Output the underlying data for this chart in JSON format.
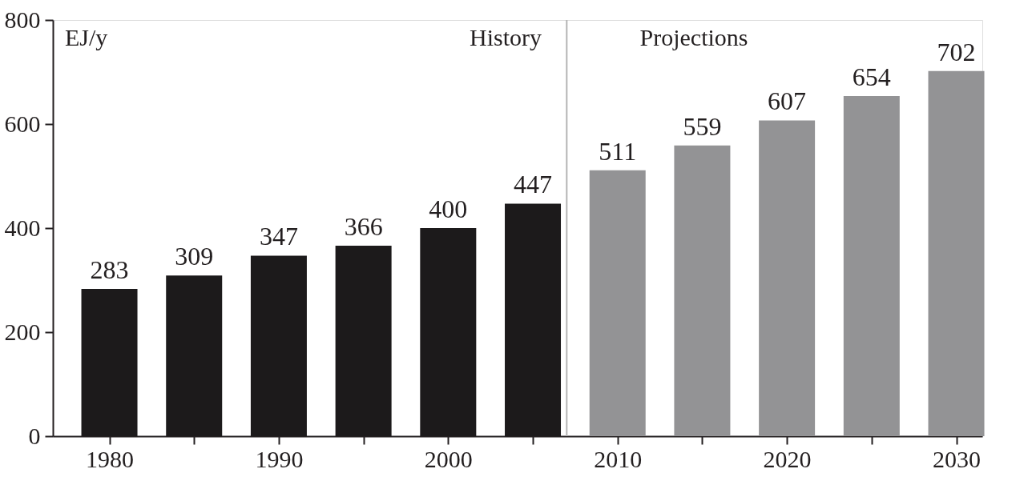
{
  "chart_data": {
    "type": "bar",
    "ylabel": "EJ/y",
    "x": [
      1980,
      1985,
      1990,
      1995,
      2000,
      2005,
      2010,
      2015,
      2020,
      2025,
      2030
    ],
    "values": [
      283,
      309,
      347,
      366,
      400,
      447,
      511,
      559,
      607,
      654,
      702
    ],
    "colors": [
      "#1c1a1b",
      "#1c1a1b",
      "#1c1a1b",
      "#1c1a1b",
      "#1c1a1b",
      "#1c1a1b",
      "#939395",
      "#939395",
      "#939395",
      "#939395",
      "#939395"
    ],
    "data_labels": true,
    "xlim": [
      1976.9,
      2031.3
    ],
    "xticks": [
      1980,
      {
        "value": 1985,
        "label": null
      },
      1990,
      {
        "value": 1995,
        "label": null
      },
      2000,
      {
        "value": 2005,
        "label": null
      },
      2010,
      {
        "value": 2015,
        "label": null
      },
      2020,
      {
        "value": 2025,
        "label": null
      },
      2030
    ],
    "ylim": [
      0,
      800
    ],
    "yticks": [
      0,
      200,
      400,
      600,
      800
    ],
    "ref_lines": [
      {
        "axis": "x",
        "value": 2007,
        "color": "#b4b4b4"
      }
    ],
    "annotations": [
      "History",
      "Projections"
    ],
    "grid": false
  }
}
